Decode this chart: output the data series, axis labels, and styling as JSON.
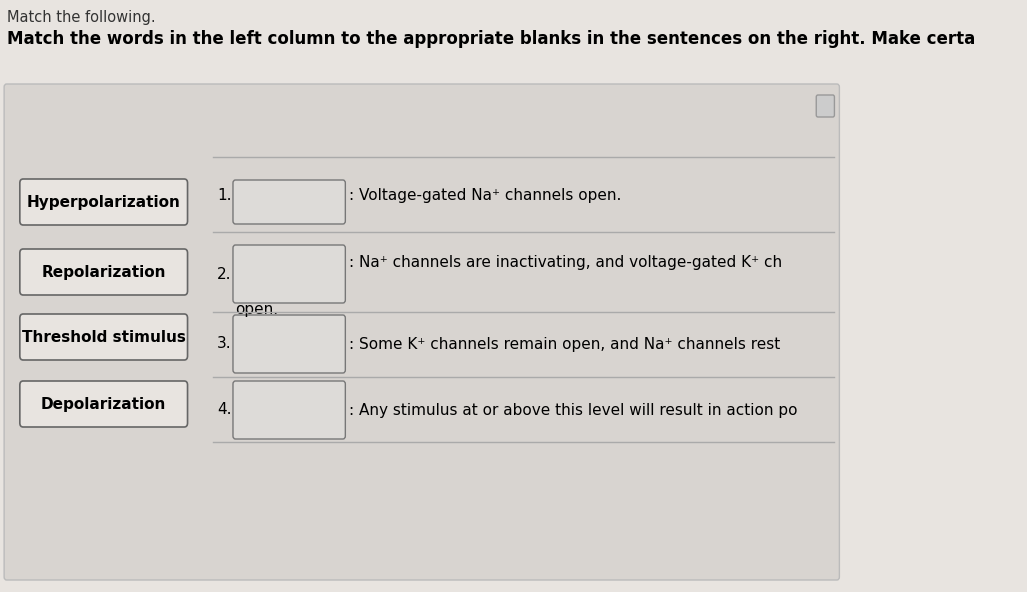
{
  "title1": "Match the following.",
  "title2": "Match the words in the left column to the appropriate blanks in the sentences on the right. Make certa",
  "title1_fontsize": 10.5,
  "title2_fontsize": 12,
  "page_bg": "#e8e4e0",
  "panel_bg": "#d8d4d0",
  "left_box_fill": "#e8e4e0",
  "left_box_edge": "#666666",
  "answer_box_fill": "#dddbd8",
  "answer_box_edge": "#777777",
  "sep_color": "#aaaaaa",
  "left_terms": [
    "Hyperpolarization",
    "Repolarization",
    "Threshold stimulus",
    "Depolarization"
  ],
  "term_fontsize": 11,
  "text_fontsize": 11,
  "rows": [
    {
      "num": "1.",
      "line1": ": Voltage-gated Na⁺ channels open.",
      "line2": null
    },
    {
      "num": "2.",
      "line1": ": Na⁺ channels are inactivating, and voltage-gated K⁺ ch",
      "line2": "open."
    },
    {
      "num": "3.",
      "line1": ": Some K⁺ channels remain open, and Na⁺ channels rest",
      "line2": null
    },
    {
      "num": "4.",
      "line1": ": Any stimulus at or above this level will result in action po",
      "line2": null
    }
  ]
}
